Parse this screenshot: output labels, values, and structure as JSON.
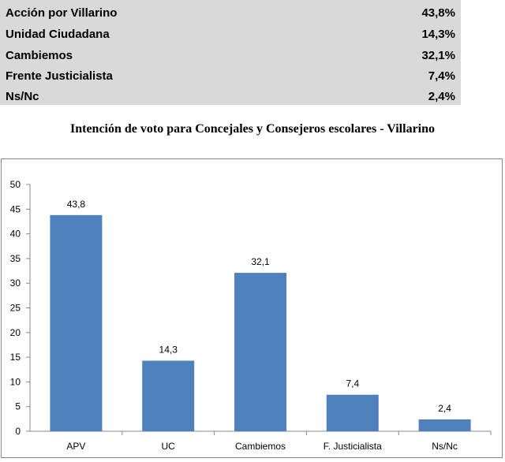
{
  "table": {
    "rows": [
      {
        "name": "Acción por Villarino",
        "pct": "43,8%"
      },
      {
        "name": "Unidad Ciudadana",
        "pct": "14,3%"
      },
      {
        "name": "Cambiemos",
        "pct": "32,1%"
      },
      {
        "name": "Frente Justicialista",
        "pct": "7,4%"
      },
      {
        "name": "Ns/Nc",
        "pct": "2,4%"
      }
    ]
  },
  "chart_data": {
    "type": "bar",
    "title": "Intención de voto para Concejales y Consejeros escolares - Villarino",
    "categories": [
      "APV",
      "UC",
      "Cambiemos",
      "F. Justicialista",
      "Ns/Nc"
    ],
    "values": [
      43.8,
      14.3,
      32.1,
      7.4,
      2.4
    ],
    "value_labels": [
      "43,8",
      "14,3",
      "32,1",
      "7,4",
      "2,4"
    ],
    "yticks": [
      "0",
      "5",
      "10",
      "15",
      "20",
      "25",
      "30",
      "35",
      "40",
      "45",
      "50"
    ],
    "ylim": [
      0,
      50
    ],
    "xlabel": "",
    "ylabel": "",
    "bar_color": "#4f81bd",
    "grid": false
  }
}
